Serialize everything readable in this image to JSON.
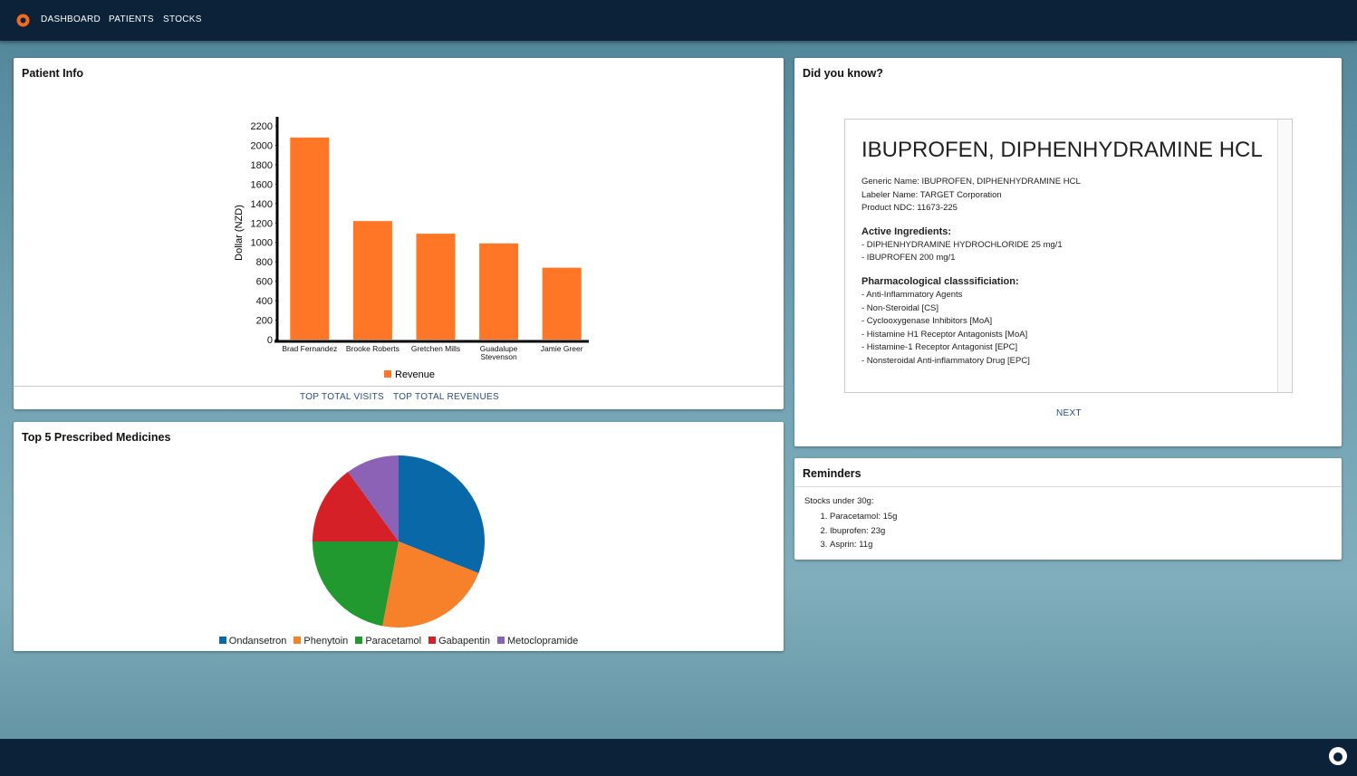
{
  "nav": {
    "links": [
      "DASHBOARD",
      "PATIENTS",
      "STOCKS"
    ]
  },
  "patient_info": {
    "title": "Patient Info",
    "buttons": [
      "TOP TOTAL VISITS",
      "TOP TOTAL REVENUES"
    ]
  },
  "top_medicines": {
    "title": "Top 5 Prescribed Medicines"
  },
  "did_you_know": {
    "title": "Did you know?",
    "drug_name": "IBUPROFEN, DIPHENHYDRAMINE HCL",
    "details": [
      "Generic Name: IBUPROFEN, DIPHENHYDRAMINE HCL",
      "Labeler Name: TARGET Corporation",
      "Product NDC: 11673-225"
    ],
    "active_heading": "Active Ingredients:",
    "active": [
      "- DIPHENHYDRAMINE HYDROCHLORIDE 25 mg/1",
      "- IBUPROFEN 200 mg/1"
    ],
    "pharma_heading": "Pharmacological classsificiation:",
    "pharma": [
      "- Anti-Inflammatory Agents",
      "- Non-Steroidal [CS]",
      "- Cyclooxygenase Inhibitors [MoA]",
      "- Histamine H1 Receptor Antagonists [MoA]",
      "- Histamine-1 Receptor Antagonist [EPC]",
      "- Nonsteroidal Anti-inflammatory Drug [EPC]"
    ],
    "button": "NEXT"
  },
  "reminders": {
    "title": "Reminders",
    "intro": "Stocks under 30g:",
    "items": [
      "Paracetamol: 15g",
      "Ibuprofen: 23g",
      "Asprin: 11g"
    ]
  },
  "chart_data": [
    {
      "type": "bar",
      "y_label": "Dollar (NZD)",
      "categories": [
        "Brad Fernandez",
        "Brooke Roberts",
        "Gretchen Mills",
        "Guadalupe Stevenson",
        "Jamie Greer"
      ],
      "series": [
        {
          "name": "Revenue",
          "color": "#ff7626",
          "values": [
            2080,
            1220,
            1090,
            990,
            740
          ]
        }
      ],
      "ylim": [
        0,
        2200
      ],
      "yticks": [
        0,
        200,
        400,
        600,
        800,
        1000,
        1200,
        1400,
        1600,
        1800,
        2000,
        2200
      ]
    },
    {
      "type": "pie",
      "categories": [
        "Ondansetron",
        "Phenytoin",
        "Paracetamol",
        "Gabapentin",
        "Metoclopramide"
      ],
      "values": [
        31,
        22,
        22,
        15,
        10
      ],
      "colors": [
        "#0868a8",
        "#f7812a",
        "#22992f",
        "#d62027",
        "#8c62b6"
      ]
    }
  ]
}
